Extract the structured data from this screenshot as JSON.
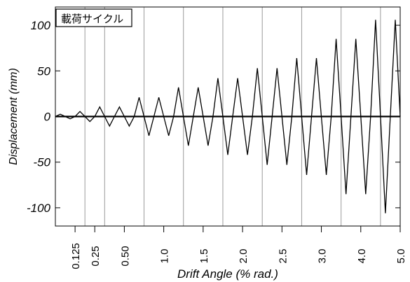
{
  "chart_data": {
    "type": "line",
    "legend_label": "載荷サイクル",
    "xlabel": "Drift Angle (% rad.)",
    "ylabel": "Displacement (mm)",
    "ylim": [
      -120,
      120
    ],
    "y_ticks": [
      {
        "value": 100,
        "label": "100"
      },
      {
        "value": 50,
        "label": "50"
      },
      {
        "value": 0,
        "label": "0"
      },
      {
        "value": -50,
        "label": "-50"
      },
      {
        "value": -100,
        "label": "-100"
      }
    ],
    "drift_categories": [
      {
        "label": "0.125",
        "index": 1.0
      },
      {
        "label": "0.25",
        "index": 2.0
      },
      {
        "label": "0.50",
        "index": 3.5
      },
      {
        "label": "1.0",
        "index": 5.5
      },
      {
        "label": "1.5",
        "index": 7.5
      },
      {
        "label": "2.0",
        "index": 9.5
      },
      {
        "label": "2.5",
        "index": 11.5
      },
      {
        "label": "3.0",
        "index": 13.5
      },
      {
        "label": "4.0",
        "index": 15.5
      },
      {
        "label": "5.0",
        "index": 17.5
      }
    ],
    "group_boundaries": [
      1.5,
      2.5,
      4.5,
      6.5,
      8.5,
      10.5,
      12.5,
      14.5,
      16.5
    ],
    "xlim": [
      0,
      17.5
    ],
    "series": [
      {
        "points": [
          [
            0,
            0
          ],
          [
            0.25,
            2.5
          ],
          [
            0.5,
            0
          ],
          [
            0.75,
            -2.5
          ],
          [
            1.0,
            0
          ],
          [
            1.25,
            5.5
          ],
          [
            1.5,
            0
          ],
          [
            1.75,
            -5.5
          ],
          [
            2.0,
            0
          ],
          [
            2.25,
            10.5
          ],
          [
            2.5,
            0
          ],
          [
            2.75,
            -10.5
          ],
          [
            3.0,
            0
          ],
          [
            3.25,
            10.5
          ],
          [
            3.5,
            0
          ],
          [
            3.75,
            -10.5
          ],
          [
            4.0,
            0
          ],
          [
            4.25,
            21
          ],
          [
            4.5,
            0
          ],
          [
            4.75,
            -21
          ],
          [
            5.0,
            0
          ],
          [
            5.25,
            21
          ],
          [
            5.5,
            0
          ],
          [
            5.75,
            -21
          ],
          [
            6.0,
            0
          ],
          [
            6.25,
            32
          ],
          [
            6.5,
            0
          ],
          [
            6.75,
            -32
          ],
          [
            7.0,
            0
          ],
          [
            7.25,
            32
          ],
          [
            7.5,
            0
          ],
          [
            7.75,
            -32
          ],
          [
            8.0,
            0
          ],
          [
            8.25,
            42
          ],
          [
            8.5,
            0
          ],
          [
            8.75,
            -42
          ],
          [
            9.0,
            0
          ],
          [
            9.25,
            42
          ],
          [
            9.5,
            0
          ],
          [
            9.75,
            -42
          ],
          [
            10.0,
            0
          ],
          [
            10.25,
            53
          ],
          [
            10.5,
            0
          ],
          [
            10.75,
            -53
          ],
          [
            11.0,
            0
          ],
          [
            11.25,
            53
          ],
          [
            11.5,
            0
          ],
          [
            11.75,
            -53
          ],
          [
            12.0,
            0
          ],
          [
            12.25,
            64
          ],
          [
            12.5,
            0
          ],
          [
            12.75,
            -64
          ],
          [
            13.0,
            0
          ],
          [
            13.25,
            64
          ],
          [
            13.5,
            0
          ],
          [
            13.75,
            -64
          ],
          [
            14.0,
            0
          ],
          [
            14.25,
            85
          ],
          [
            14.5,
            0
          ],
          [
            14.75,
            -85
          ],
          [
            15.0,
            0
          ],
          [
            15.25,
            85
          ],
          [
            15.5,
            0
          ],
          [
            15.75,
            -85
          ],
          [
            16.0,
            0
          ],
          [
            16.25,
            106
          ],
          [
            16.5,
            0
          ],
          [
            16.75,
            -106
          ],
          [
            17.0,
            0
          ],
          [
            17.25,
            106
          ],
          [
            17.5,
            0
          ]
        ]
      }
    ]
  }
}
